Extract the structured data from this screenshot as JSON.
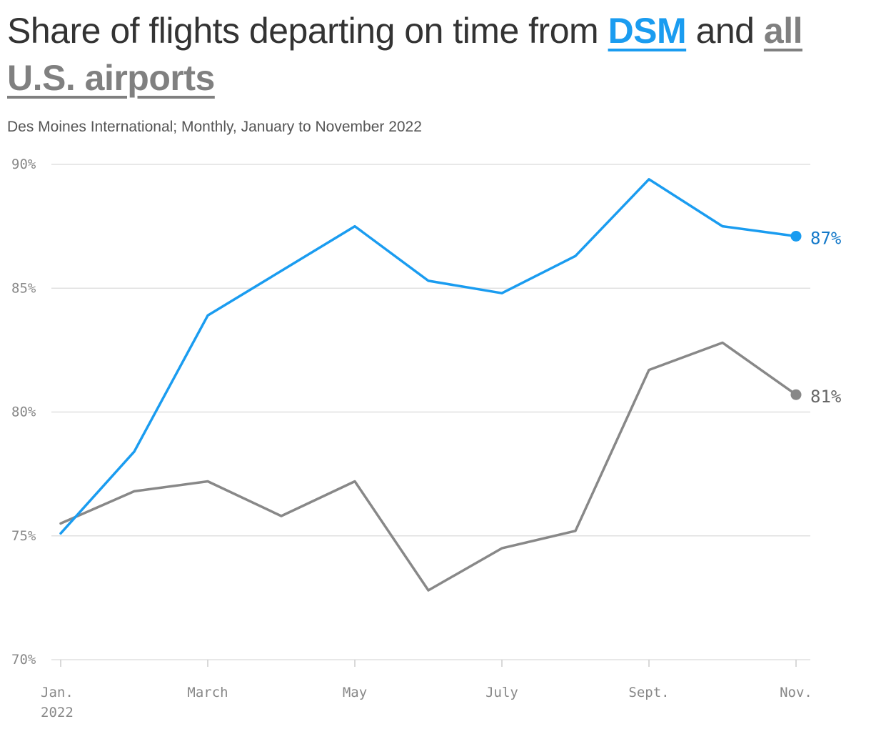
{
  "title": {
    "prefix": "Share of flights departing on time from ",
    "highlight_dsm": "DSM",
    "middle": " and ",
    "highlight_us": "all U.S. airports"
  },
  "subtitle": "Des Moines International; Monthly, January to November 2022",
  "colors": {
    "dsm": "#1a9cf0",
    "us": "#888888",
    "grid": "#e0e0e0",
    "axis_text": "#888888"
  },
  "chart_data": {
    "type": "line",
    "title": "Share of flights departing on time from DSM and all U.S. airports",
    "subtitle": "Des Moines International; Monthly, January to November 2022",
    "x": [
      "2022-01",
      "2022-02",
      "2022-03",
      "2022-04",
      "2022-05",
      "2022-06",
      "2022-07",
      "2022-08",
      "2022-09",
      "2022-10",
      "2022-11"
    ],
    "x_tick_labels": [
      {
        "x": "2022-01",
        "line1": "Jan.",
        "line2": "2022"
      },
      {
        "x": "2022-03",
        "line1": "March",
        "line2": ""
      },
      {
        "x": "2022-05",
        "line1": "May",
        "line2": ""
      },
      {
        "x": "2022-07",
        "line1": "July",
        "line2": ""
      },
      {
        "x": "2022-09",
        "line1": "Sept.",
        "line2": ""
      },
      {
        "x": "2022-11",
        "line1": "Nov.",
        "line2": ""
      }
    ],
    "y_ticks": [
      {
        "value": 70,
        "label": "70%"
      },
      {
        "value": 75,
        "label": "75%"
      },
      {
        "value": 80,
        "label": "80%"
      },
      {
        "value": 85,
        "label": "85%"
      },
      {
        "value": 90,
        "label": "90%"
      }
    ],
    "ylim": [
      70,
      90
    ],
    "grid": true,
    "series": [
      {
        "name": "DSM",
        "color": "#1a9cf0",
        "values": [
          75.1,
          78.4,
          83.9,
          85.7,
          87.5,
          85.3,
          84.8,
          86.3,
          89.4,
          87.5,
          87.1
        ],
        "end_label": "87%"
      },
      {
        "name": "all U.S. airports",
        "color": "#888888",
        "values": [
          75.5,
          76.8,
          77.2,
          75.8,
          77.2,
          72.8,
          74.5,
          75.2,
          81.7,
          82.8,
          80.7
        ],
        "end_label": "81%"
      }
    ]
  }
}
